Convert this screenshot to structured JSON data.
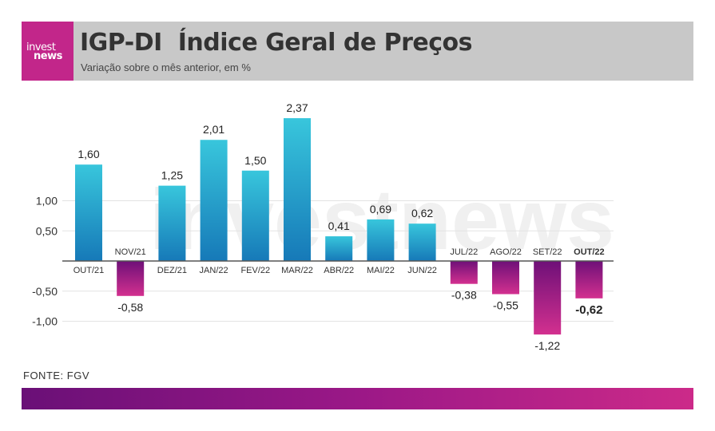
{
  "header": {
    "logo": {
      "line1": "invest",
      "line2": "news"
    },
    "title_a": "IGP-DI",
    "title_b": "Índice Geral de Preços",
    "subtitle": "Variação sobre o mês anterior, em %"
  },
  "chart_data": {
    "type": "bar",
    "categories": [
      "OUT/21",
      "NOV/21",
      "DEZ/21",
      "JAN/22",
      "FEV/22",
      "MAR/22",
      "ABR/22",
      "MAI/22",
      "JUN/22",
      "JUL/22",
      "AGO/22",
      "SET/22",
      "OUT/22"
    ],
    "values": [
      1.6,
      -0.58,
      1.25,
      2.01,
      1.5,
      2.37,
      0.41,
      0.69,
      0.62,
      -0.38,
      -0.55,
      -1.22,
      -0.62
    ],
    "value_labels": [
      "1,60",
      "-0,58",
      "1,25",
      "2,01",
      "1,50",
      "2,37",
      "0,41",
      "0,69",
      "0,62",
      "-0,38",
      "-0,55",
      "-1,22",
      "-0,62"
    ],
    "yticks": [
      1.0,
      0.5,
      -0.5,
      -1.0
    ],
    "ytick_labels": [
      "1,00",
      "0,50",
      "-0,50",
      "-1,00"
    ],
    "highlight_index": 12,
    "grid": true,
    "colors": {
      "positive_top": "#38c6dc",
      "positive_bottom": "#1679b8",
      "negative_top": "#6e1078",
      "negative_bottom": "#d3308f",
      "axis": "#555555",
      "grid": "#e3e3e3"
    }
  },
  "watermark": "investnews",
  "source": "FONTE: FGV"
}
